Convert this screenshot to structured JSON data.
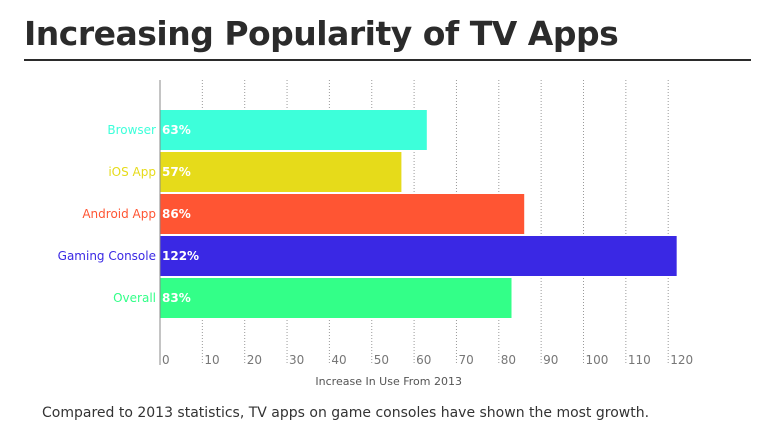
{
  "title": "Increasing Popularity of TV Apps",
  "caption": "Compared to 2013 statistics, TV apps on game consoles have shown the most growth.",
  "chart_data": {
    "type": "bar",
    "orientation": "horizontal",
    "title": "Increasing Popularity of TV Apps",
    "xlabel": "Increase In Use From 2013",
    "ylabel": "",
    "xlim": [
      0,
      120
    ],
    "x_ticks": [
      0,
      10,
      20,
      30,
      40,
      50,
      60,
      70,
      80,
      90,
      100,
      110,
      120
    ],
    "grid": "vertical-dotted",
    "categories": [
      "Browser",
      "iOS App",
      "Android App",
      "Gaming Console",
      "Overall"
    ],
    "values": [
      63,
      57,
      86,
      122,
      83
    ],
    "value_labels": [
      "63%",
      "57%",
      "86%",
      "122%",
      "83%"
    ],
    "colors": [
      "#3dffda",
      "#e6db1a",
      "#ff5533",
      "#3a28e4",
      "#33ff88"
    ]
  }
}
